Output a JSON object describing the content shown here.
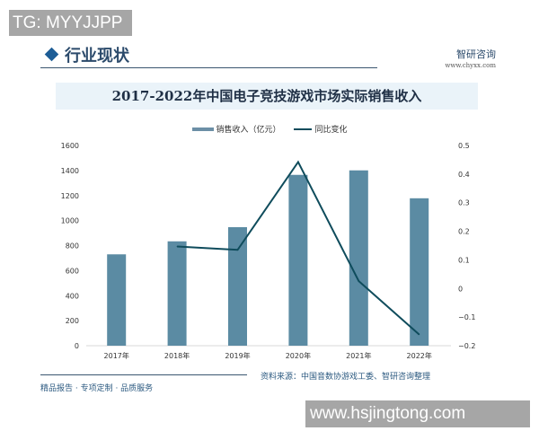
{
  "watermark_top": "TG: MYYJJPP",
  "watermark_bottom": "www.hsjingtong.com",
  "header": {
    "title": "行业现状",
    "logo": "智研咨询",
    "url": "www.chyxx.com"
  },
  "footer": {
    "left": "精品报告 · 专项定制 · 品质服务",
    "source": "资料来源：中国音数协游戏工委、智研咨询整理"
  },
  "colors": {
    "bar": "#5b8ba3",
    "line": "#0f4c5c"
  },
  "chart_data": {
    "type": "bar+line",
    "title": "2017-2022年中国电子竞技游戏市场实际销售收入",
    "categories": [
      "2017年",
      "2018年",
      "2019年",
      "2020年",
      "2021年",
      "2022年"
    ],
    "series": [
      {
        "name": "销售收入（亿元）",
        "type": "bar",
        "axis": "left",
        "values": [
          730,
          834,
          947,
          1365,
          1401,
          1178
        ]
      },
      {
        "name": "同比变化",
        "type": "line",
        "axis": "right",
        "values": [
          null,
          0.147,
          0.135,
          0.442,
          0.026,
          -0.161
        ]
      }
    ],
    "ylim_left": [
      0,
      1600
    ],
    "yticks_left": [
      "0",
      "200",
      "400",
      "600",
      "800",
      "1000",
      "1200",
      "1400",
      "1600"
    ],
    "ylim_right": [
      -0.2,
      0.5
    ],
    "yticks_right": [
      "-0.2",
      "-0.1",
      "0",
      "0.1",
      "0.2",
      "0.3",
      "0.4",
      "0.5"
    ],
    "legend": "top",
    "grid": false
  }
}
